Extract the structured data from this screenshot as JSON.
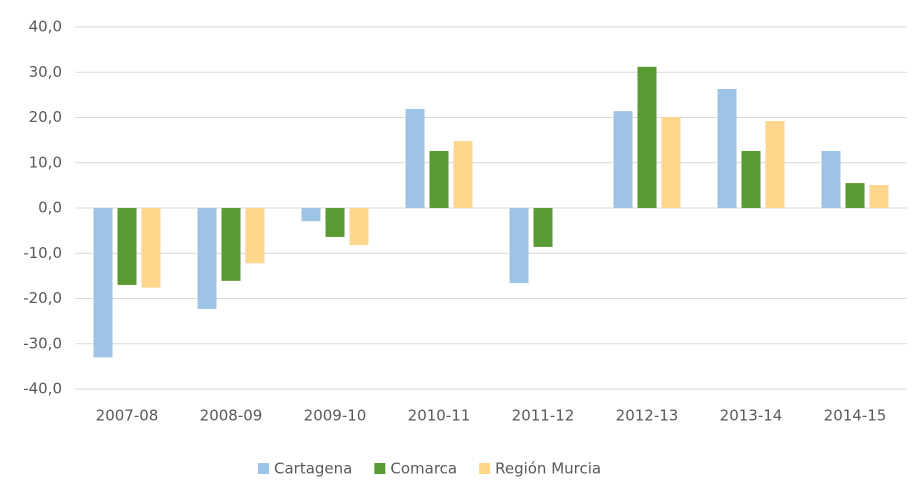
{
  "chart_data": {
    "type": "bar",
    "categories": [
      "2007-08",
      "2008-09",
      "2009-10",
      "2010-11",
      "2011-12",
      "2012-13",
      "2013-14",
      "2014-15"
    ],
    "series": [
      {
        "name": "Cartagena",
        "color": "#9dc3e6",
        "values": [
          -33.0,
          -22.3,
          -2.9,
          21.9,
          -16.6,
          21.4,
          26.3,
          12.6
        ]
      },
      {
        "name": "Comarca",
        "color": "#5a9a32",
        "values": [
          -17.0,
          -16.1,
          -6.4,
          12.6,
          -8.6,
          31.2,
          12.6,
          5.5
        ]
      },
      {
        "name": "Región Murcia",
        "color": "#ffd68c",
        "values": [
          -17.6,
          -12.2,
          -8.2,
          14.8,
          null,
          20.1,
          19.2,
          5.1
        ]
      }
    ],
    "ylim": [
      -40,
      40
    ],
    "yticks": [
      {
        "value": -40,
        "label": "-40,0"
      },
      {
        "value": -30,
        "label": "-30,0"
      },
      {
        "value": -20,
        "label": "-20,0"
      },
      {
        "value": -10,
        "label": "-10,0"
      },
      {
        "value": 0,
        "label": "0,0"
      },
      {
        "value": 10,
        "label": "10,0"
      },
      {
        "value": 20,
        "label": "20,0"
      },
      {
        "value": 30,
        "label": "30,0"
      },
      {
        "value": 40,
        "label": "40,0"
      }
    ],
    "grid": true,
    "legend": "bottom"
  }
}
